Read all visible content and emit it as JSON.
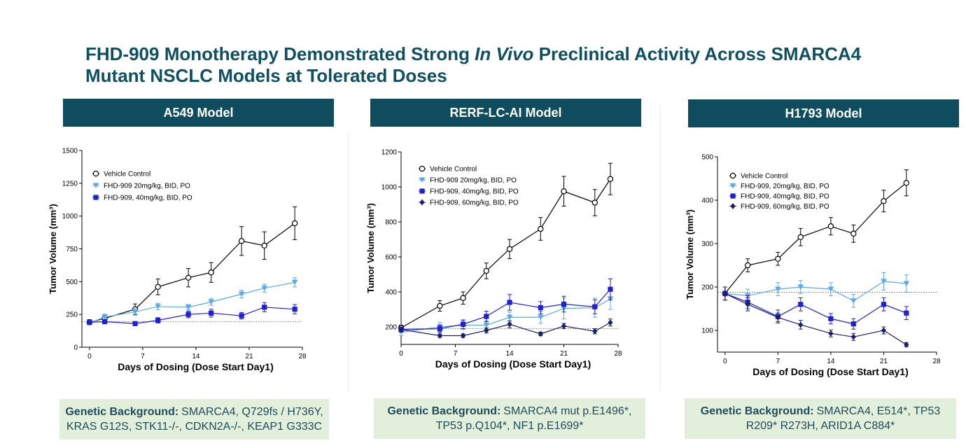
{
  "title_before": "FHD-909 Monotherapy Demonstrated Strong ",
  "title_italic": "In Vivo",
  "title_after": " Preclinical Activity Across SMARCA4 Mutant NSCLC Models at Tolerated Doses",
  "panels": [
    {
      "background_label": "Genetic Background:",
      "background_text": "SMARCA4, Q729fs / H736Y, KRAS G12S, STK11-/-, CDKN2A-/-, KEAP1 G333C"
    },
    {
      "background_label": "Genetic Background:",
      "background_text": "SMARCA4 mut p.E1496*, TP53 p.Q104*, NF1 p.E1699*"
    },
    {
      "background_label": "Genetic Background:",
      "background_text": "SMARCA4, E514*, TP53 R209* R273H, ARID1A C884*"
    }
  ],
  "chart_data": [
    {
      "type": "line",
      "title": "A549 Model",
      "x_label": "Days of Dosing (Dose Start Day1)",
      "y_label": "Tumor Volume (mm³)",
      "xlim": [
        -1,
        28
      ],
      "xticks": [
        0,
        7,
        14,
        21,
        28
      ],
      "ylim": [
        0,
        1500
      ],
      "yticks": [
        0,
        250,
        500,
        750,
        1000,
        1250,
        1500
      ],
      "reference_line": 195,
      "legend": "upper left",
      "series": [
        {
          "name": "Vehicle Control",
          "color": "#000000",
          "marker": "circle-open",
          "x": [
            0,
            2,
            6,
            9,
            13,
            16,
            20,
            23,
            27
          ],
          "values": [
            190,
            220,
            290,
            460,
            530,
            570,
            810,
            775,
            945
          ],
          "errors": [
            20,
            30,
            40,
            60,
            70,
            75,
            110,
            105,
            125
          ]
        },
        {
          "name": "FHD-909 20mg/kg, BID, PO",
          "color": "#5ba8ec",
          "marker": "triangle-down",
          "x": [
            0,
            2,
            6,
            9,
            13,
            16,
            20,
            23,
            27
          ],
          "values": [
            185,
            230,
            270,
            310,
            305,
            345,
            405,
            450,
            495
          ],
          "errors": [
            15,
            20,
            25,
            25,
            20,
            25,
            30,
            30,
            35
          ]
        },
        {
          "name": "FHD-909, 40mg/kg, BID, PO",
          "color": "#1f1fd6",
          "marker": "square",
          "x": [
            0,
            2,
            6,
            9,
            13,
            16,
            20,
            23,
            27
          ],
          "values": [
            190,
            195,
            180,
            205,
            250,
            260,
            240,
            305,
            290
          ],
          "errors": [
            15,
            15,
            15,
            20,
            25,
            30,
            25,
            35,
            35
          ]
        }
      ]
    },
    {
      "type": "line",
      "title": "RERF-LC-AI Model",
      "x_label": "Days of Dosing (Dose Start Day1)",
      "y_label": "Tumor Volume (mm³)",
      "xlim": [
        0,
        28
      ],
      "xticks": [
        0,
        7,
        14,
        21,
        28
      ],
      "ylim": [
        100,
        1200
      ],
      "yticks": [
        200,
        400,
        600,
        800,
        1000,
        1200
      ],
      "reference_line": 190,
      "legend": "upper left",
      "series": [
        {
          "name": "Vehicle Control",
          "color": "#000000",
          "marker": "circle-open",
          "x": [
            0,
            5,
            8,
            11,
            14,
            18,
            21,
            25,
            27
          ],
          "values": [
            195,
            320,
            365,
            520,
            645,
            760,
            975,
            910,
            1045
          ],
          "errors": [
            15,
            30,
            35,
            45,
            55,
            65,
            85,
            75,
            90
          ]
        },
        {
          "name": "FHD-909 20mg/kg, BID, PO",
          "color": "#5ba8ec",
          "marker": "triangle-down",
          "x": [
            0,
            5,
            8,
            11,
            14,
            18,
            21,
            25,
            27
          ],
          "values": [
            170,
            200,
            210,
            210,
            255,
            255,
            305,
            310,
            360
          ],
          "errors": [
            20,
            25,
            25,
            25,
            30,
            35,
            60,
            55,
            60
          ]
        },
        {
          "name": "FHD-909, 40mg/kg, BID, PO",
          "color": "#1f1fd6",
          "marker": "square",
          "x": [
            0,
            5,
            8,
            11,
            14,
            18,
            21,
            25,
            27
          ],
          "values": [
            185,
            190,
            215,
            260,
            340,
            310,
            330,
            315,
            415
          ],
          "errors": [
            15,
            20,
            25,
            30,
            45,
            35,
            45,
            40,
            60
          ]
        },
        {
          "name": "FHD-909, 60mg/kg, BID, PO",
          "color": "#1b1f6b",
          "marker": "diamond",
          "x": [
            0,
            5,
            8,
            11,
            14,
            18,
            21,
            25,
            27
          ],
          "values": [
            185,
            150,
            150,
            180,
            215,
            160,
            205,
            175,
            225
          ],
          "errors": [
            10,
            10,
            10,
            15,
            20,
            10,
            15,
            15,
            20
          ]
        }
      ]
    },
    {
      "type": "line",
      "title": "H1793 Model",
      "x_label": "Days of Dosing (Dose Start Day1)",
      "y_label": "Tumor Volume (mm³)",
      "xlim": [
        -1,
        28
      ],
      "xticks": [
        0,
        7,
        14,
        21,
        28
      ],
      "ylim": [
        50,
        500
      ],
      "yticks": [
        100,
        200,
        300,
        400,
        500
      ],
      "reference_line": 188,
      "legend": "upper left",
      "series": [
        {
          "name": "Vehicle Control",
          "color": "#000000",
          "marker": "circle-open",
          "x": [
            0,
            3,
            7,
            10,
            14,
            17,
            21,
            24
          ],
          "values": [
            185,
            250,
            265,
            315,
            340,
            323,
            398,
            440
          ],
          "errors": [
            15,
            15,
            15,
            20,
            20,
            20,
            25,
            30
          ]
        },
        {
          "name": "FHD-909, 20mg/kg, BID, PO",
          "color": "#5ba8ec",
          "marker": "triangle-down",
          "x": [
            0,
            3,
            7,
            10,
            14,
            17,
            21,
            24
          ],
          "values": [
            185,
            180,
            195,
            200,
            195,
            168,
            213,
            208
          ],
          "errors": [
            15,
            15,
            15,
            15,
            15,
            15,
            20,
            20
          ]
        },
        {
          "name": "FHD-909, 40mg/kg, BID, PO",
          "color": "#1f1fd6",
          "marker": "square",
          "x": [
            0,
            3,
            7,
            10,
            14,
            17,
            21,
            24
          ],
          "values": [
            185,
            165,
            132,
            160,
            127,
            115,
            160,
            140
          ],
          "errors": [
            15,
            15,
            15,
            15,
            12,
            12,
            15,
            15
          ]
        },
        {
          "name": "FHD-909, 60mg/kg, BID, PO",
          "color": "#1b1f6b",
          "marker": "diamond",
          "x": [
            0,
            3,
            7,
            10,
            14,
            17,
            21,
            24
          ],
          "values": [
            185,
            160,
            130,
            113,
            93,
            85,
            100,
            67
          ],
          "errors": [
            15,
            15,
            10,
            10,
            8,
            8,
            8,
            5
          ]
        }
      ]
    }
  ]
}
